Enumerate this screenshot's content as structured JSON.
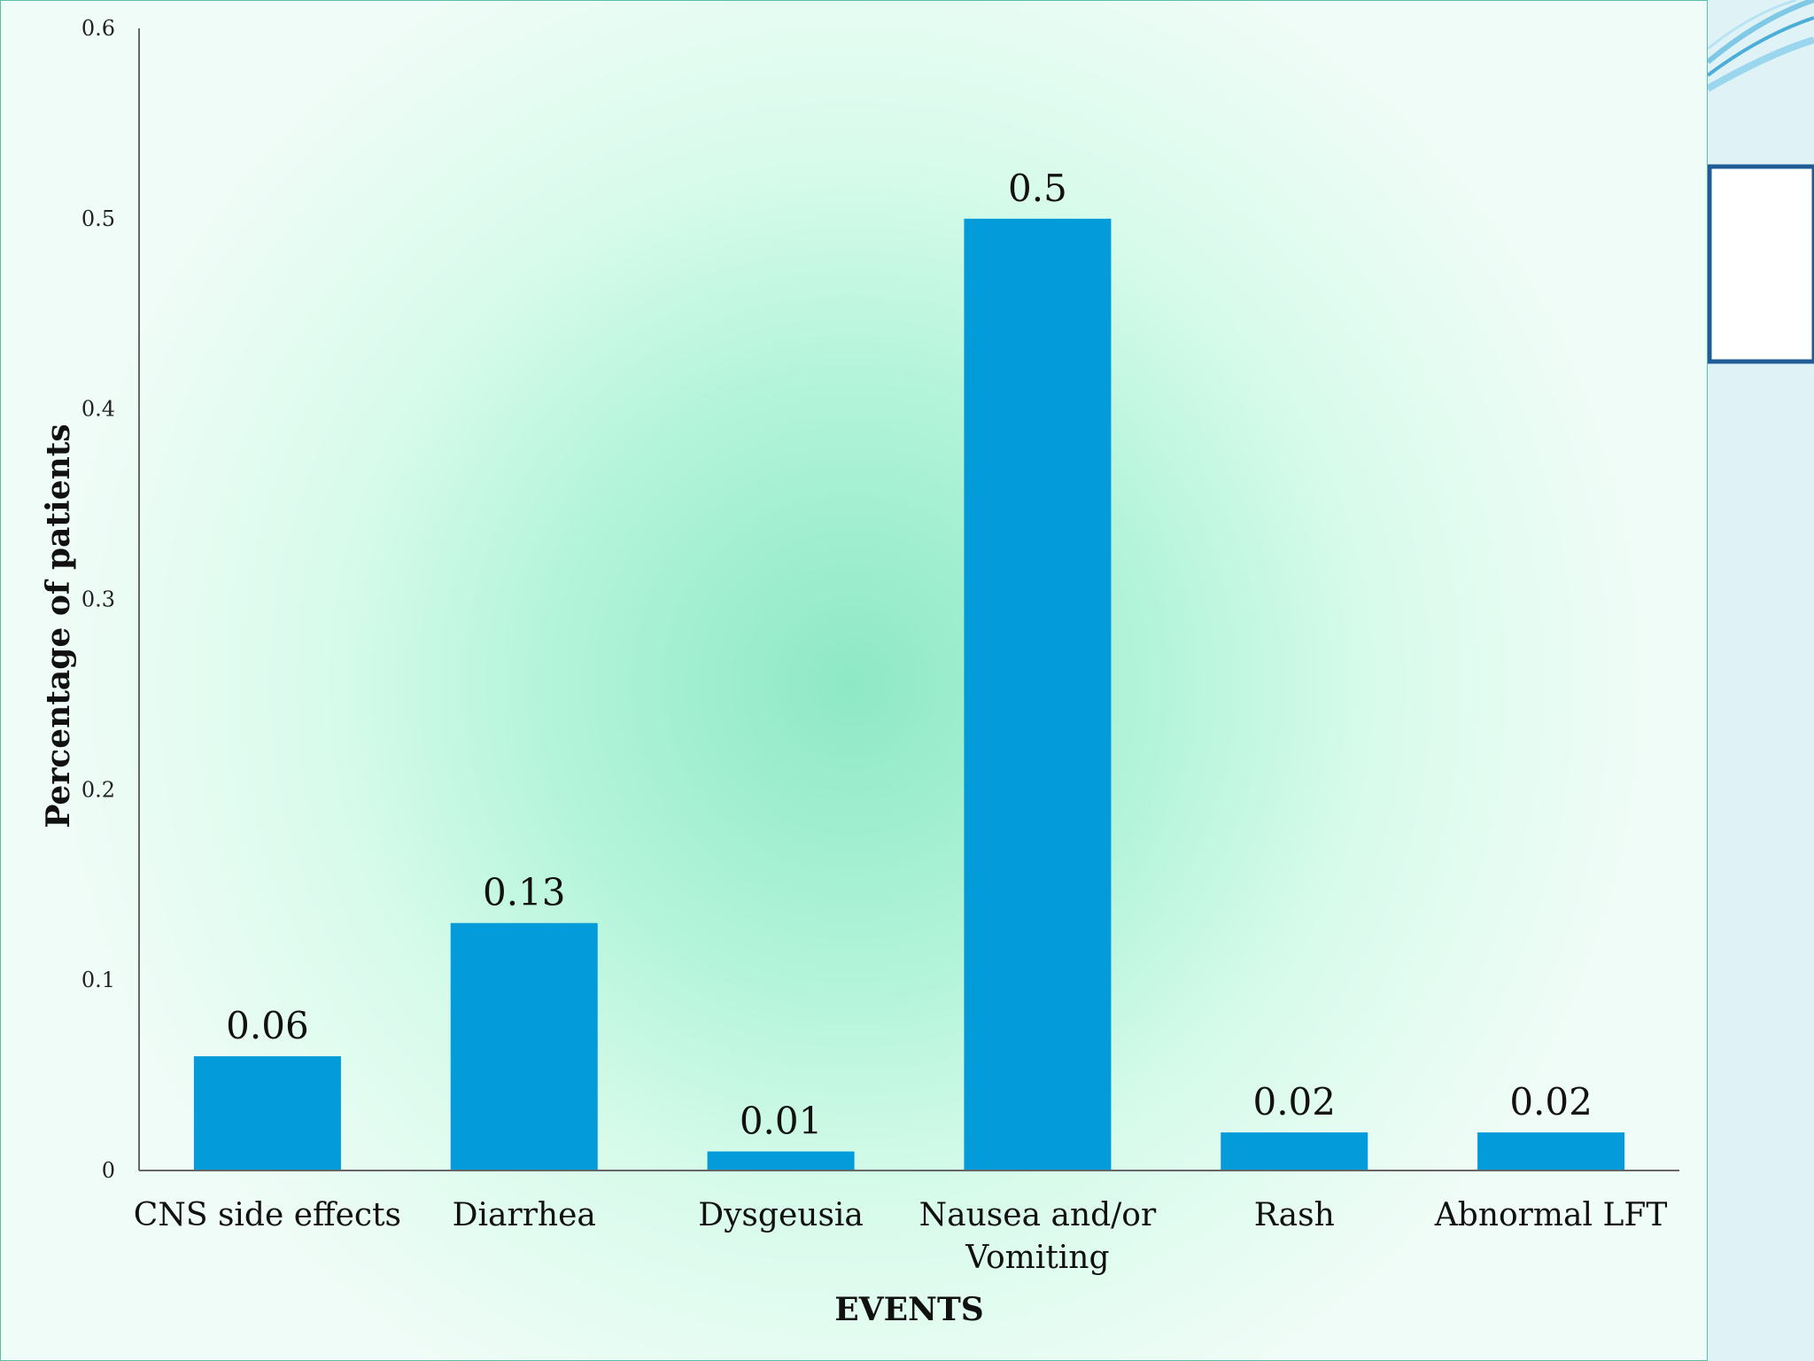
{
  "chart_data": {
    "type": "bar",
    "categories": [
      "CNS side effects",
      "Diarrhea",
      "Dysgeusia",
      "Nausea and/or Vomiting",
      "Rash",
      "Abnormal LFT"
    ],
    "category_lines": [
      [
        "CNS side effects"
      ],
      [
        "Diarrhea"
      ],
      [
        "Dysgeusia"
      ],
      [
        "Nausea and/or",
        "Vomiting"
      ],
      [
        "Rash"
      ],
      [
        "Abnormal LFT"
      ]
    ],
    "values": [
      0.06,
      0.13,
      0.01,
      0.5,
      0.02,
      0.02
    ],
    "data_labels": [
      "0.06",
      "0.13",
      "0.01",
      "0.5",
      "0.02",
      "0.02"
    ],
    "title": "",
    "xlabel": "EVENTS",
    "ylabel": "Percentage of patients",
    "ylim": [
      0,
      0.6
    ],
    "yticks": [
      0,
      0.1,
      0.2,
      0.3,
      0.4,
      0.5,
      0.6
    ],
    "ytick_labels": [
      "0",
      "0.1",
      "0.2",
      "0.3",
      "0.4",
      "0.5",
      "0.6"
    ],
    "grid": false,
    "legend": "none",
    "bar_color": "#039bd9"
  }
}
